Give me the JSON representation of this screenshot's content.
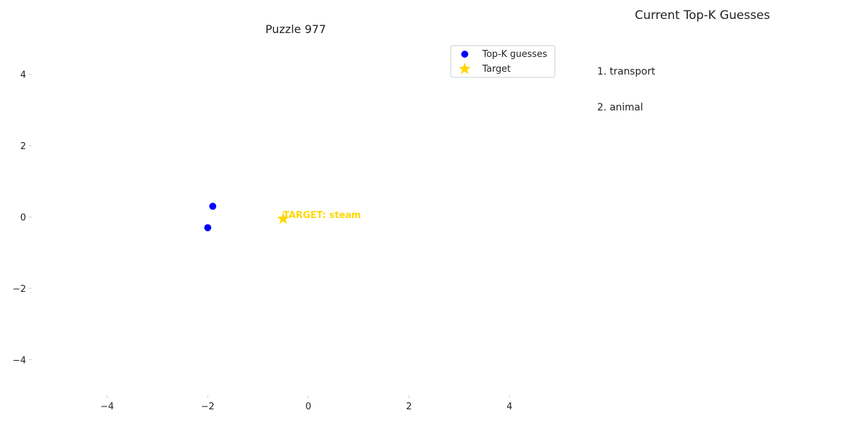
{
  "chart_data": {
    "type": "scatter",
    "title": "Puzzle 977",
    "xlim": [
      -5.5,
      5
    ],
    "ylim": [
      -5,
      5
    ],
    "x_ticks": [
      -4,
      -2,
      0,
      2,
      4
    ],
    "y_ticks": [
      4,
      2,
      0,
      -2,
      -4
    ],
    "grid": false,
    "legend_position": "upper right",
    "series": [
      {
        "name": "Top-K guesses",
        "marker": "circle",
        "color": "#0000ff",
        "points": [
          {
            "x": -1.9,
            "y": 0.3
          },
          {
            "x": -2.0,
            "y": -0.3
          }
        ]
      },
      {
        "name": "Target",
        "marker": "star",
        "color": "#ffd700",
        "points": [
          {
            "x": -0.5,
            "y": -0.05
          }
        ]
      }
    ],
    "annotations": [
      {
        "text": "TARGET: steam",
        "x": -0.5,
        "y": -0.05,
        "color": "#ffd700"
      }
    ]
  },
  "panel": {
    "title": "Current Top-K Guesses",
    "items": [
      {
        "label": "1. transport"
      },
      {
        "label": "2. animal"
      }
    ]
  }
}
